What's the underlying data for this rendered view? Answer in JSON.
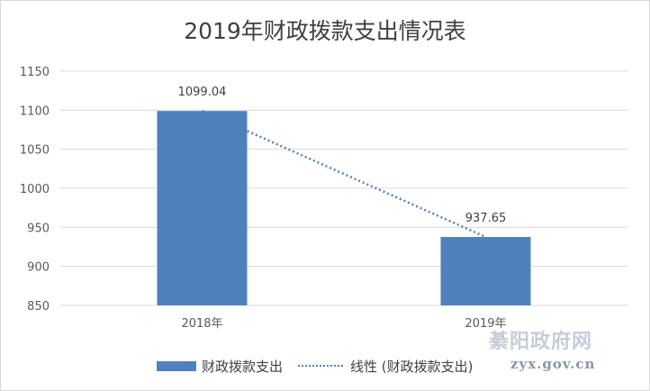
{
  "chart_data": {
    "type": "bar",
    "title": "2019年财政拨款支出情况表",
    "categories": [
      "2018年",
      "2019年"
    ],
    "series": [
      {
        "name": "财政拨款支出",
        "values": [
          1099.04,
          937.65
        ]
      }
    ],
    "data_labels": [
      "1099.04",
      "937.65"
    ],
    "trendline": {
      "name": "线性 (财政拨款支出)",
      "type": "linear"
    },
    "ylim": [
      850,
      1150
    ],
    "yticks": [
      850,
      900,
      950,
      1000,
      1050,
      1100,
      1150
    ],
    "grid": true,
    "legend_position": "bottom",
    "colors": {
      "bar": "#4f81bd",
      "trendline": "#4f81bd",
      "grid": "#d9d9d9"
    }
  },
  "watermark": {
    "main": "綦阳政府网",
    "sub": "zyx.gov.cn"
  }
}
